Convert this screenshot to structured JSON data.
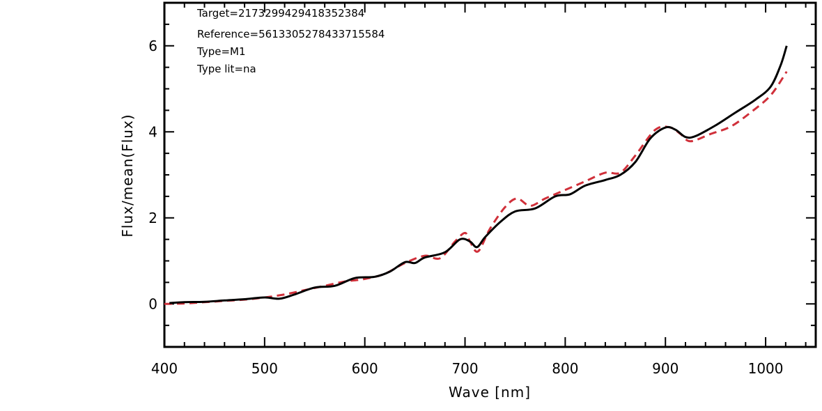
{
  "chart_data": {
    "type": "line",
    "title": "",
    "xlabel": "Wave [nm]",
    "ylabel": "Flux/mean(Flux)",
    "xlim": [
      400,
      1050
    ],
    "ylim": [
      -1,
      7
    ],
    "x_ticks": [
      400,
      500,
      600,
      700,
      800,
      900,
      1000
    ],
    "y_ticks": [
      0,
      2,
      4,
      6
    ],
    "grid": false,
    "legend": "none",
    "annotations": [
      "Target=2173299429418352384",
      "Reference=5613305278433715584",
      "Type=M1",
      "Type lit=na"
    ],
    "series": [
      {
        "style": "solid",
        "color": "#000000",
        "points": [
          [
            405,
            0.02
          ],
          [
            420,
            0.04
          ],
          [
            440,
            0.05
          ],
          [
            460,
            0.08
          ],
          [
            480,
            0.11
          ],
          [
            500,
            0.15
          ],
          [
            515,
            0.12
          ],
          [
            530,
            0.22
          ],
          [
            550,
            0.38
          ],
          [
            570,
            0.42
          ],
          [
            590,
            0.6
          ],
          [
            610,
            0.63
          ],
          [
            625,
            0.75
          ],
          [
            640,
            0.97
          ],
          [
            650,
            0.95
          ],
          [
            660,
            1.08
          ],
          [
            680,
            1.2
          ],
          [
            695,
            1.5
          ],
          [
            705,
            1.45
          ],
          [
            712,
            1.32
          ],
          [
            720,
            1.55
          ],
          [
            735,
            1.9
          ],
          [
            750,
            2.15
          ],
          [
            770,
            2.22
          ],
          [
            790,
            2.5
          ],
          [
            805,
            2.55
          ],
          [
            820,
            2.75
          ],
          [
            840,
            2.88
          ],
          [
            855,
            3.0
          ],
          [
            870,
            3.3
          ],
          [
            885,
            3.85
          ],
          [
            900,
            4.1
          ],
          [
            910,
            4.05
          ],
          [
            920,
            3.88
          ],
          [
            930,
            3.9
          ],
          [
            950,
            4.15
          ],
          [
            970,
            4.45
          ],
          [
            990,
            4.75
          ],
          [
            1005,
            5.05
          ],
          [
            1015,
            5.55
          ],
          [
            1021,
            6.0
          ]
        ]
      },
      {
        "style": "dashed",
        "color": "#d0303a",
        "points": [
          [
            400,
            0.0
          ],
          [
            420,
            0.01
          ],
          [
            440,
            0.04
          ],
          [
            460,
            0.07
          ],
          [
            480,
            0.1
          ],
          [
            500,
            0.15
          ],
          [
            520,
            0.22
          ],
          [
            540,
            0.32
          ],
          [
            560,
            0.42
          ],
          [
            580,
            0.52
          ],
          [
            600,
            0.58
          ],
          [
            620,
            0.7
          ],
          [
            640,
            0.95
          ],
          [
            660,
            1.12
          ],
          [
            675,
            1.06
          ],
          [
            690,
            1.45
          ],
          [
            700,
            1.65
          ],
          [
            705,
            1.45
          ],
          [
            713,
            1.22
          ],
          [
            725,
            1.75
          ],
          [
            740,
            2.25
          ],
          [
            752,
            2.45
          ],
          [
            765,
            2.28
          ],
          [
            780,
            2.45
          ],
          [
            800,
            2.65
          ],
          [
            820,
            2.85
          ],
          [
            840,
            3.05
          ],
          [
            855,
            3.05
          ],
          [
            870,
            3.45
          ],
          [
            890,
            4.05
          ],
          [
            905,
            4.1
          ],
          [
            915,
            3.95
          ],
          [
            925,
            3.78
          ],
          [
            945,
            3.95
          ],
          [
            965,
            4.12
          ],
          [
            985,
            4.45
          ],
          [
            1005,
            4.85
          ],
          [
            1021,
            5.4
          ]
        ]
      }
    ]
  }
}
